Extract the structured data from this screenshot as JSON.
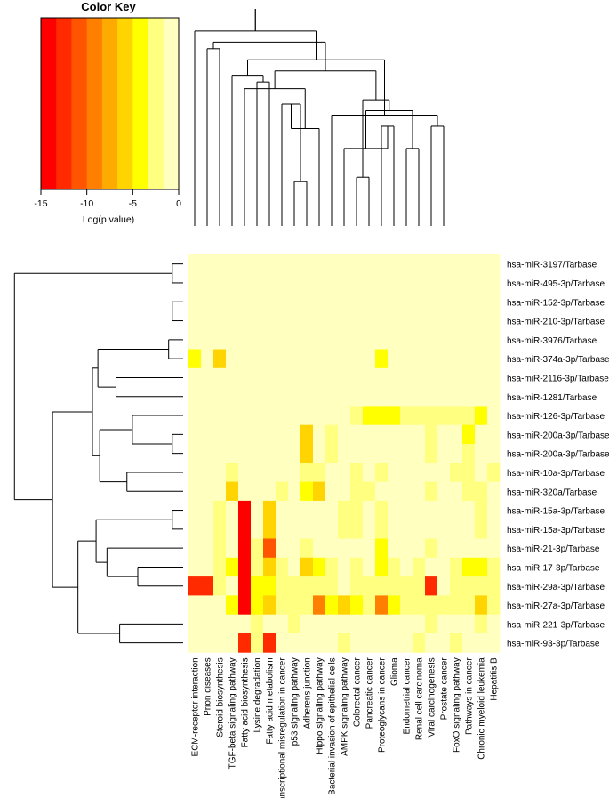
{
  "chart_data": {
    "type": "heatmap",
    "color_key": {
      "title": "Color Key",
      "xlabel": "Log(p value)",
      "ticks": [
        -15,
        -10,
        -5,
        0
      ],
      "range": [
        -15,
        0
      ],
      "colors": [
        "#ff0000",
        "#ff2a00",
        "#ff5500",
        "#ff7f00",
        "#ffaa00",
        "#ffd400",
        "#ffff00",
        "#ffff80",
        "#ffffbf"
      ]
    },
    "columns": [
      "ECM-receptor interaction",
      "Prion diseases",
      "Steroid biosynthesis",
      "TGF-beta signaling pathway",
      "Fatty acid biosynthesis",
      "Lysine degradation",
      "Fatty acid metabolism",
      "Transcriptional misregulation in cancer",
      "p53 signaling pathway",
      "Adherens junction",
      "Hippo signaling pathway",
      "Bacterial invasion of epithelial cells",
      "AMPK signaling pathway",
      "Colorectal cancer",
      "Pancreatic cancer",
      "Proteoglycans in cancer",
      "Glioma",
      "Endometrial cancer",
      "Renal cell carcinoma",
      "Viral carcinogenesis",
      "Prostate cancer",
      "FoxO signaling pathway",
      "Pathways in cancer",
      "Chronic myeloid leukemia",
      "Hepatitis B"
    ],
    "rows": [
      "hsa-miR-3197/Tarbase",
      "hsa-miR-495-3p/Tarbase",
      "hsa-miR-152-3p/Tarbase",
      "hsa-miR-210-3p/Tarbase",
      "hsa-miR-3976/Tarbase",
      "hsa-miR-374a-3p/Tarbase",
      "hsa-miR-2116-3p/Tarbase",
      "hsa-miR-1281/Tarbase",
      "hsa-miR-126-3p/Tarbase",
      "hsa-miR-200a-3p/Tarbase",
      "hsa-miR-200a-3p/Tarbase",
      "hsa-miR-10a-3p/Tarbase",
      "hsa-miR-320a/Tarbase",
      "hsa-miR-15a-3p/Tarbase",
      "hsa-miR-15a-3p/Tarbase",
      "hsa-miR-21-3p/Tarbase",
      "hsa-miR-17-3p/Tarbase",
      "hsa-miR-29a-3p/Tarbase",
      "hsa-miR-27a-3p/Tarbase",
      "hsa-miR-221-3p/Tarbase",
      "hsa-miR-93-3p/Tarbase"
    ],
    "values": [
      [
        0,
        0,
        0,
        0,
        0,
        0,
        0,
        0,
        0,
        0,
        0,
        0,
        0,
        0,
        0,
        0,
        0,
        0,
        0,
        0,
        0,
        0,
        0,
        0,
        0
      ],
      [
        0,
        0,
        0,
        0,
        0,
        0,
        0,
        0,
        0,
        0,
        0,
        0,
        0,
        0,
        0,
        0,
        0,
        0,
        0,
        0,
        0,
        0,
        0,
        0,
        0
      ],
      [
        0,
        0,
        0,
        0,
        0,
        0,
        0,
        0,
        0,
        0,
        0,
        0,
        0,
        0,
        0,
        0,
        0,
        0,
        0,
        0,
        0,
        0,
        0,
        0,
        0
      ],
      [
        0,
        0,
        0,
        0,
        0,
        0,
        0,
        0,
        0,
        0,
        0,
        0,
        0,
        0,
        0,
        0,
        0,
        0,
        0,
        0,
        0,
        0,
        0,
        0,
        0
      ],
      [
        0,
        0,
        0,
        0,
        0,
        0,
        0,
        0,
        0,
        0,
        0,
        0,
        0,
        0,
        0,
        0,
        0,
        0,
        0,
        0,
        0,
        0,
        0,
        0,
        0
      ],
      [
        -4,
        0,
        -6,
        0,
        0,
        0,
        0,
        0,
        0,
        0,
        0,
        0,
        0,
        0,
        0,
        -4,
        0,
        0,
        0,
        0,
        0,
        0,
        0,
        0,
        0
      ],
      [
        0,
        0,
        0,
        0,
        0,
        0,
        0,
        0,
        0,
        0,
        0,
        0,
        0,
        0,
        0,
        0,
        0,
        0,
        0,
        0,
        0,
        0,
        0,
        0,
        0
      ],
      [
        0,
        0,
        0,
        0,
        0,
        0,
        0,
        0,
        0,
        0,
        0,
        0,
        0,
        0,
        0,
        0,
        0,
        0,
        0,
        0,
        0,
        0,
        0,
        0,
        0
      ],
      [
        0,
        0,
        0,
        0,
        0,
        0,
        0,
        0,
        0,
        0,
        0,
        0,
        0,
        -3,
        -4,
        -5,
        -4,
        -3,
        -3,
        -3,
        -3,
        -2,
        -3,
        -4,
        0
      ],
      [
        0,
        0,
        0,
        0,
        0,
        0,
        0,
        0,
        0,
        -6,
        0,
        -2,
        0,
        0,
        0,
        0,
        0,
        0,
        0,
        -2,
        0,
        0,
        -4,
        0,
        0
      ],
      [
        0,
        0,
        0,
        0,
        0,
        0,
        0,
        0,
        0,
        -6,
        0,
        -2,
        0,
        0,
        0,
        0,
        0,
        0,
        0,
        -2,
        0,
        0,
        -2,
        0,
        0
      ],
      [
        0,
        0,
        0,
        -3,
        0,
        0,
        0,
        0,
        0,
        -2,
        -2,
        0,
        0,
        -3,
        0,
        -2,
        0,
        0,
        0,
        0,
        0,
        -3,
        -3,
        0,
        -2
      ],
      [
        0,
        0,
        0,
        -6,
        0,
        0,
        0,
        -3,
        0,
        -4,
        -6,
        0,
        0,
        -2,
        -2,
        0,
        0,
        0,
        0,
        -3,
        0,
        0,
        -2,
        -2,
        0
      ],
      [
        0,
        0,
        -3,
        0,
        -14,
        0,
        -6,
        0,
        0,
        0,
        0,
        0,
        -2,
        -3,
        0,
        -3,
        0,
        0,
        0,
        0,
        0,
        0,
        0,
        -3,
        0
      ],
      [
        0,
        0,
        -3,
        0,
        -14,
        0,
        -6,
        0,
        0,
        0,
        0,
        0,
        -2,
        -3,
        0,
        -3,
        0,
        0,
        0,
        0,
        0,
        0,
        0,
        -3,
        0
      ],
      [
        0,
        0,
        -2,
        0,
        -14,
        -3,
        -11,
        0,
        0,
        -2,
        0,
        0,
        0,
        0,
        0,
        -4,
        0,
        0,
        0,
        -3,
        0,
        0,
        0,
        0,
        0
      ],
      [
        0,
        0,
        -2,
        -4,
        -14,
        -3,
        -6,
        -3,
        0,
        -6,
        -4,
        -2,
        0,
        -3,
        0,
        -5,
        -2,
        0,
        -2,
        0,
        0,
        -3,
        -4,
        -4,
        -3
      ],
      [
        -13,
        -13,
        -3,
        0,
        -14,
        -5,
        -4,
        -2,
        -2,
        -2,
        -2,
        -2,
        0,
        -3,
        -2,
        -2,
        -2,
        -2,
        -2,
        -12,
        0,
        -3,
        -3,
        -3,
        -2
      ],
      [
        0,
        0,
        0,
        -5,
        -14,
        -5,
        -6,
        -3,
        -3,
        -3,
        -9,
        -5,
        -6,
        -4,
        -3,
        -10,
        -4,
        -3,
        -3,
        -3,
        -3,
        -3,
        -3,
        -6,
        -3
      ],
      [
        0,
        0,
        0,
        0,
        0,
        -2,
        0,
        0,
        -3,
        0,
        0,
        0,
        0,
        0,
        0,
        0,
        0,
        0,
        0,
        -2,
        0,
        0,
        0,
        -2,
        0
      ],
      [
        0,
        0,
        0,
        0,
        -12,
        -3,
        -12,
        0,
        0,
        0,
        0,
        0,
        -2,
        0,
        0,
        0,
        0,
        0,
        -2,
        0,
        0,
        -2,
        0,
        0,
        0
      ]
    ],
    "column_dendrogram": [
      [
        15,
        16,
        0.45
      ],
      [
        8,
        9,
        0.2
      ],
      [
        13,
        14,
        0.22
      ],
      [
        12,
        15,
        0.35
      ],
      [
        17,
        18,
        0.35
      ],
      [
        19,
        20,
        0.45
      ],
      [
        11,
        19,
        0.5
      ],
      [
        5,
        6,
        0.65
      ],
      [
        7,
        8,
        0.55
      ],
      [
        9,
        10,
        0.44
      ],
      [
        4,
        7,
        0.62
      ],
      [
        1,
        2,
        0.8
      ],
      [
        3,
        5,
        0.68
      ],
      [
        16,
        17,
        0.52
      ],
      [
        14,
        16,
        0.57
      ],
      [
        10,
        13,
        0.7
      ],
      [
        2,
        4,
        0.83
      ],
      [
        6,
        11,
        0.75
      ],
      [
        0,
        3,
        0.88
      ],
      [
        0,
        6,
        0.98
      ]
    ],
    "row_dendrogram": [
      [
        0,
        1,
        0.06
      ],
      [
        2,
        3,
        0.06
      ],
      [
        4,
        5,
        0.08
      ],
      [
        9,
        10,
        0.06
      ],
      [
        13,
        14,
        0.06
      ],
      [
        16,
        17,
        0.25
      ],
      [
        6,
        7,
        0.37
      ],
      [
        8,
        9,
        0.28
      ],
      [
        11,
        12,
        0.31
      ],
      [
        15,
        16,
        0.42
      ],
      [
        19,
        20,
        0.35
      ],
      [
        5,
        6,
        0.47
      ],
      [
        8,
        11,
        0.46
      ],
      [
        13,
        15,
        0.48
      ],
      [
        6,
        8,
        0.5
      ],
      [
        13,
        19,
        0.58
      ],
      [
        5,
        13,
        0.72
      ],
      [
        0,
        5,
        0.93
      ]
    ]
  }
}
